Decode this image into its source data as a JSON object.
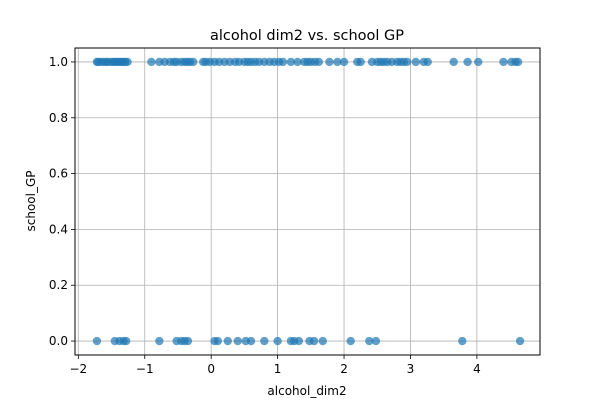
{
  "chart_data": {
    "type": "scatter",
    "title": "alcohol dim2 vs. school GP",
    "xlabel": "alcohol_dim2",
    "ylabel": "school_GP",
    "xlim": [
      -2.05,
      4.95
    ],
    "ylim": [
      -0.05,
      1.05
    ],
    "xticks": [
      -2,
      -1,
      0,
      1,
      2,
      3,
      4
    ],
    "xtick_labels": [
      "−2",
      "−1",
      "0",
      "1",
      "2",
      "3",
      "4"
    ],
    "yticks": [
      0.0,
      0.2,
      0.4,
      0.6,
      0.8,
      1.0
    ],
    "ytick_labels": [
      "0.0",
      "0.2",
      "0.4",
      "0.6",
      "0.8",
      "1.0"
    ],
    "grid": true,
    "marker_color": "#1f77b4",
    "series": [
      {
        "x": [
          -1.72,
          -1.7,
          -1.66,
          -1.62,
          -1.58,
          -1.55,
          -1.5,
          -1.47,
          -1.44,
          -1.41,
          -1.38,
          -1.35,
          -1.32,
          -1.29,
          -1.26,
          -0.9,
          -0.78,
          -0.7,
          -0.62,
          -0.56,
          -0.52,
          -0.45,
          -0.4,
          -0.36,
          -0.32,
          -0.27,
          -0.12,
          -0.08,
          -0.02,
          0.05,
          0.12,
          0.2,
          0.28,
          0.36,
          0.42,
          0.5,
          0.55,
          0.6,
          0.66,
          0.72,
          0.8,
          0.88,
          0.95,
          1.02,
          1.08,
          1.2,
          1.3,
          1.4,
          1.45,
          1.5,
          1.56,
          1.62,
          1.78,
          1.9,
          2.0,
          2.2,
          2.25,
          2.42,
          2.5,
          2.55,
          2.6,
          2.65,
          2.72,
          2.8,
          2.85,
          2.9,
          2.95,
          3.08,
          3.2,
          3.26,
          3.65,
          3.86,
          4.02,
          4.4,
          4.52,
          4.58,
          4.62,
          -1.72,
          -1.45,
          -1.38,
          -1.32,
          -1.28,
          -0.78,
          -0.52,
          -0.45,
          -0.4,
          -0.35,
          0.05,
          0.1,
          0.25,
          0.4,
          0.52,
          0.6,
          0.8,
          1.0,
          1.2,
          1.25,
          1.32,
          1.48,
          1.55,
          1.68,
          2.1,
          2.38,
          2.48,
          3.78,
          4.65
        ],
        "y": [
          1,
          1,
          1,
          1,
          1,
          1,
          1,
          1,
          1,
          1,
          1,
          1,
          1,
          1,
          1,
          1,
          1,
          1,
          1,
          1,
          1,
          1,
          1,
          1,
          1,
          1,
          1,
          1,
          1,
          1,
          1,
          1,
          1,
          1,
          1,
          1,
          1,
          1,
          1,
          1,
          1,
          1,
          1,
          1,
          1,
          1,
          1,
          1,
          1,
          1,
          1,
          1,
          1,
          1,
          1,
          1,
          1,
          1,
          1,
          1,
          1,
          1,
          1,
          1,
          1,
          1,
          1,
          1,
          1,
          1,
          1,
          1,
          1,
          1,
          1,
          1,
          1,
          0,
          0,
          0,
          0,
          0,
          0,
          0,
          0,
          0,
          0,
          0,
          0,
          0,
          0,
          0,
          0,
          0,
          0,
          0,
          0,
          0,
          0,
          0,
          0,
          0,
          0,
          0,
          0,
          0
        ]
      }
    ]
  }
}
